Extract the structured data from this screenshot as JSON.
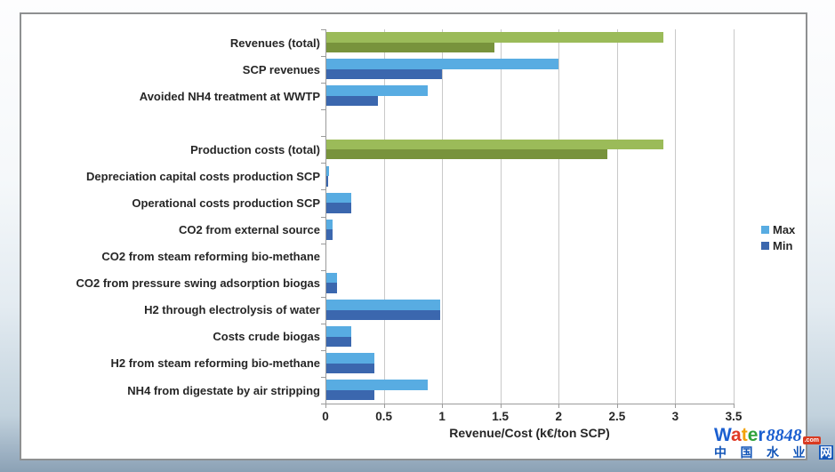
{
  "chart_data": {
    "type": "bar",
    "orientation": "horizontal",
    "xlabel": "Revenue/Cost (k€/ton SCP)",
    "xlim": [
      0,
      3.5
    ],
    "xticks": [
      0,
      0.5,
      1,
      1.5,
      2,
      2.5,
      3,
      3.5
    ],
    "xtick_labels": [
      "0",
      "0.5",
      "1",
      "1.5",
      "2",
      "2.5",
      "3",
      "3.5"
    ],
    "grid": true,
    "legend_position": "right",
    "series_names": [
      "Max",
      "Min"
    ],
    "legend": [
      {
        "label": "Max",
        "color": "#58ace2"
      },
      {
        "label": "Min",
        "color": "#3b67ae"
      }
    ],
    "colors": {
      "max_blue": "#58ace2",
      "min_blue": "#3b67ae",
      "max_green": "#9bbb59",
      "min_green": "#78933c",
      "gridline": "#c9c9c9",
      "axis": "#9b9b9b"
    },
    "rows": [
      {
        "label": "Revenues (total)",
        "max": 2.9,
        "min": 1.45,
        "palette": "green"
      },
      {
        "label": "SCP revenues",
        "max": 2.0,
        "min": 1.0,
        "palette": "blue"
      },
      {
        "label": "Avoided NH4 treatment at WWTP",
        "max": 0.88,
        "min": 0.45,
        "palette": "blue"
      },
      {
        "label": "",
        "max": null,
        "min": null,
        "palette": "blue",
        "spacer": true
      },
      {
        "label": "Production costs (total)",
        "max": 2.9,
        "min": 2.42,
        "palette": "green"
      },
      {
        "label": "Depreciation capital costs production SCP",
        "max": 0.03,
        "min": 0.025,
        "palette": "blue"
      },
      {
        "label": "Operational costs production SCP",
        "max": 0.22,
        "min": 0.22,
        "palette": "blue"
      },
      {
        "label": "CO2 from external source",
        "max": 0.06,
        "min": 0.06,
        "palette": "blue"
      },
      {
        "label": "CO2 from steam reforming bio-methane",
        "max": 0,
        "min": 0,
        "palette": "blue"
      },
      {
        "label": "CO2 from pressure swing adsorption biogas",
        "max": 0.1,
        "min": 0.1,
        "palette": "blue"
      },
      {
        "label": "H2 through electrolysis of water",
        "max": 0.98,
        "min": 0.98,
        "palette": "blue"
      },
      {
        "label": "Costs crude biogas",
        "max": 0.22,
        "min": 0.22,
        "palette": "blue"
      },
      {
        "label": "H2 from steam reforming bio-methane",
        "max": 0.42,
        "min": 0.42,
        "palette": "blue"
      },
      {
        "label": "NH4 from digestate by air stripping",
        "max": 0.88,
        "min": 0.42,
        "palette": "blue"
      }
    ]
  },
  "watermark": {
    "letters": [
      {
        "ch": "W",
        "color": "#1b5fd0"
      },
      {
        "ch": "a",
        "color": "#e03a26"
      },
      {
        "ch": "t",
        "color": "#f2a30a"
      },
      {
        "ch": "e",
        "color": "#30a23c"
      },
      {
        "ch": "r",
        "color": "#1b5fd0"
      }
    ],
    "number": "8848",
    "number_color": "#1b5fd0",
    "tld": ".com",
    "chinese": [
      "中",
      "国",
      "水",
      "业",
      "网"
    ],
    "chinese_color": "#1456b8",
    "chinese_boxed_last": true
  }
}
